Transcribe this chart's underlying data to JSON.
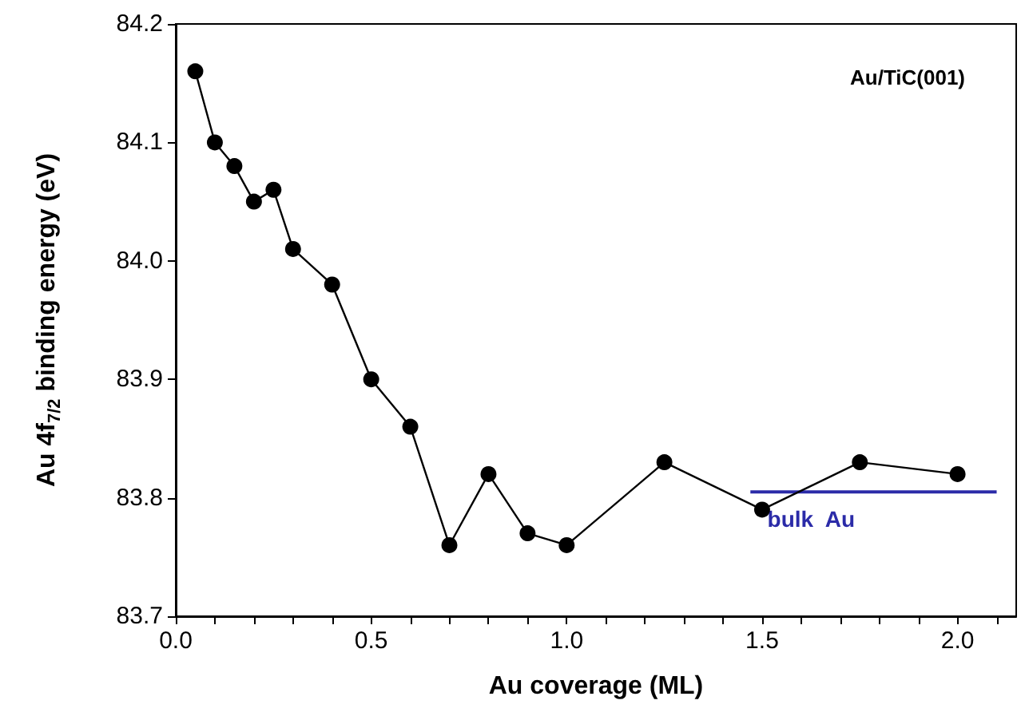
{
  "chart_data": {
    "type": "line",
    "xlabel": "Au coverage (ML)",
    "ylabel": "Au 4f$_{7/2}$ binding energy (eV)",
    "annotations": [
      "Au/TiC(001)"
    ],
    "xlim": [
      0,
      2.15
    ],
    "ylim": [
      83.7,
      84.2
    ],
    "xticks": [
      {
        "value": 0,
        "label": "0.0"
      },
      {
        "value": 0.1,
        "label": null
      },
      {
        "value": 0.2,
        "label": null
      },
      {
        "value": 0.3,
        "label": null
      },
      {
        "value": 0.4,
        "label": null
      },
      {
        "value": 0.5,
        "label": "0.5"
      },
      {
        "value": 0.6,
        "label": null
      },
      {
        "value": 0.7,
        "label": null
      },
      {
        "value": 0.8,
        "label": null
      },
      {
        "value": 0.9,
        "label": null
      },
      {
        "value": 1,
        "label": "1.0"
      },
      {
        "value": 1.1,
        "label": null
      },
      {
        "value": 1.2,
        "label": null
      },
      {
        "value": 1.3,
        "label": null
      },
      {
        "value": 1.4,
        "label": null
      },
      {
        "value": 1.5,
        "label": "1.5"
      },
      {
        "value": 1.6,
        "label": null
      },
      {
        "value": 1.7,
        "label": null
      },
      {
        "value": 1.8,
        "label": null
      },
      {
        "value": 1.9,
        "label": null
      },
      {
        "value": 2,
        "label": "2.0"
      },
      {
        "value": 2.1,
        "label": null
      }
    ],
    "yticks": [
      83.7,
      83.8,
      83.9,
      {
        "value": 84,
        "label": "84.0"
      },
      84.1,
      84.2
    ],
    "grid": false,
    "legend": false,
    "series": [
      {
        "color": "#000000",
        "marker": "circle",
        "x": [
          0.05,
          0.1,
          0.15,
          0.2,
          0.25,
          0.3,
          0.4,
          0.5,
          0.6,
          0.7,
          0.8,
          0.9,
          1.0,
          1.25,
          1.5,
          1.75,
          2.0
        ],
        "values": [
          84.16,
          84.1,
          84.08,
          84.05,
          84.06,
          84.01,
          83.98,
          83.9,
          83.86,
          83.76,
          83.82,
          83.77,
          83.76,
          83.83,
          83.79,
          83.83,
          83.82
        ]
      },
      {
        "name": "bulk  Au",
        "color": "#2b2ba8",
        "marker": "none",
        "x": [
          1.47,
          2.1
        ],
        "values": [
          83.805,
          83.805
        ]
      }
    ]
  }
}
